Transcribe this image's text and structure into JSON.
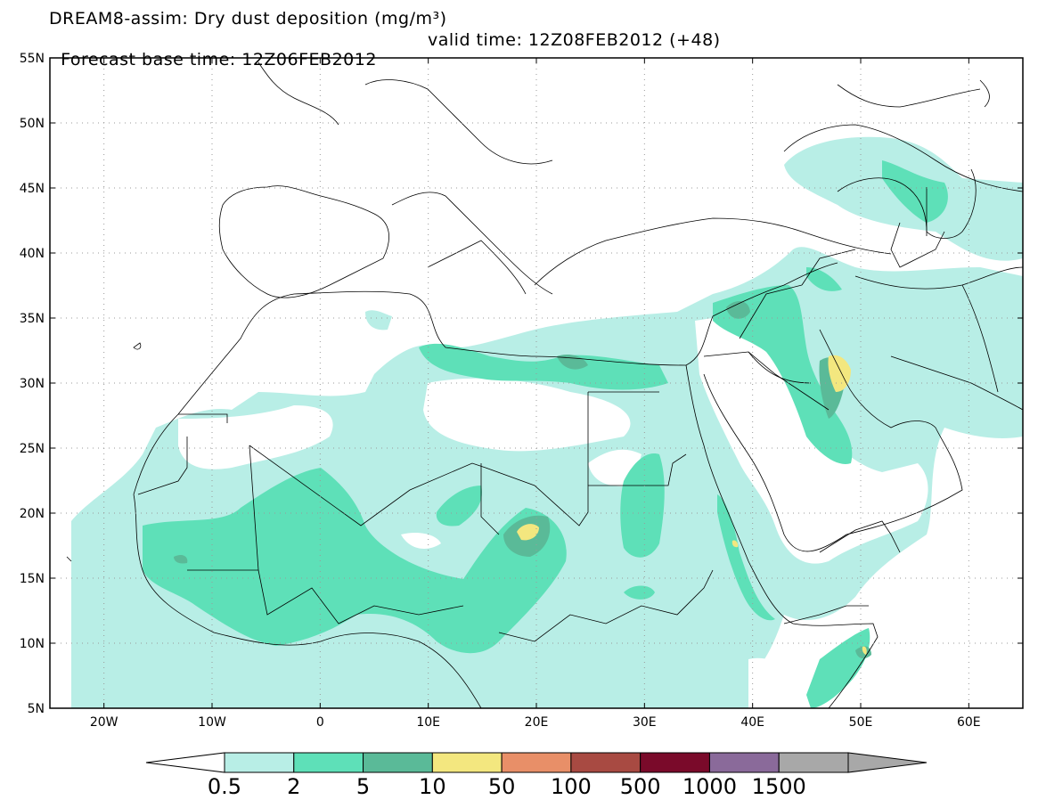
{
  "title": {
    "line1": "DREAM8-assim: Dry dust deposition (mg/m³)",
    "line2_base": "Forecast base time: 12Z06FEB2012",
    "line2_valid": "valid time: 12Z08FEB2012 (+48)"
  },
  "map": {
    "lon_range": [
      -25,
      65
    ],
    "lat_range": [
      5,
      55
    ],
    "lat_labels": [
      {
        "value": 55,
        "label": "55N"
      },
      {
        "value": 50,
        "label": "50N"
      },
      {
        "value": 45,
        "label": "45N"
      },
      {
        "value": 40,
        "label": "40N"
      },
      {
        "value": 35,
        "label": "35N"
      },
      {
        "value": 30,
        "label": "30N"
      },
      {
        "value": 25,
        "label": "25N"
      },
      {
        "value": 20,
        "label": "20N"
      },
      {
        "value": 15,
        "label": "15N"
      },
      {
        "value": 10,
        "label": "10N"
      },
      {
        "value": 5,
        "label": "5N"
      }
    ],
    "lon_labels": [
      {
        "value": -20,
        "label": "20W"
      },
      {
        "value": -10,
        "label": "10W"
      },
      {
        "value": 0,
        "label": "0"
      },
      {
        "value": 10,
        "label": "10E"
      },
      {
        "value": 20,
        "label": "20E"
      },
      {
        "value": 30,
        "label": "30E"
      },
      {
        "value": 40,
        "label": "40E"
      },
      {
        "value": 50,
        "label": "50E"
      },
      {
        "value": 60,
        "label": "60E"
      }
    ],
    "gridlines": "dotted"
  },
  "colorbar": {
    "labels": [
      "0.5",
      "2",
      "5",
      "10",
      "50",
      "100",
      "500",
      "1000",
      "1500"
    ],
    "colors": [
      "#b8eee6",
      "#5ee0b8",
      "#5aba98",
      "#f3e77f",
      "#e88f68",
      "#a84a42",
      "#7a0a2a",
      "#8a6a9a",
      "#a8a8a8"
    ],
    "under_color": "#ffffff"
  }
}
